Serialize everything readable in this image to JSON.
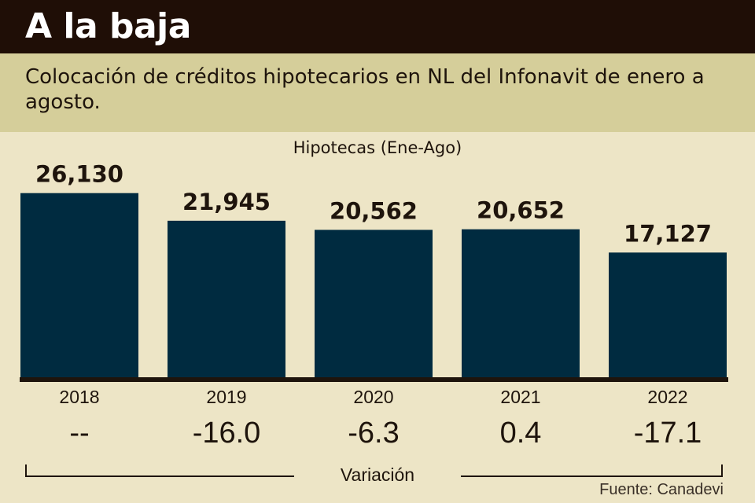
{
  "header": {
    "title": "A la baja",
    "subtitle": "Colocación de créditos hipotecarios en NL del Infonavit de enero a agosto."
  },
  "chart_data": {
    "type": "bar",
    "title": "Hipotecas (Ene-Ago)",
    "categories": [
      "2018",
      "2019",
      "2020",
      "2021",
      "2022"
    ],
    "values": [
      26130,
      21945,
      20562,
      20652,
      17127
    ],
    "value_labels": [
      "26,130",
      "21,945",
      "20,562",
      "20,652",
      "17,127"
    ],
    "variation": [
      "--",
      "-16.0",
      "-6.3",
      "0.4",
      "-17.1"
    ],
    "variation_label": "Variación",
    "xlabel": "",
    "ylabel": "",
    "ylim": [
      -2000,
      28000
    ],
    "colors": {
      "bar": "#002b40",
      "baseline": "#1e140c"
    }
  },
  "footer": {
    "source": "Fuente: Canadevi"
  }
}
